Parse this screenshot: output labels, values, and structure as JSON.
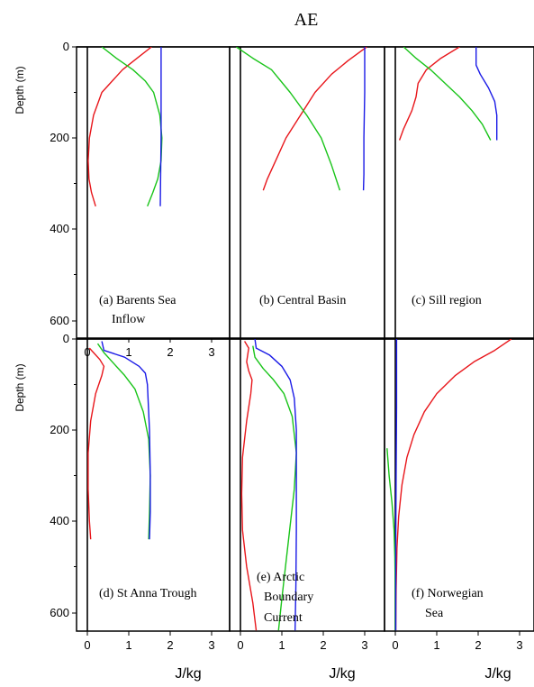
{
  "figure": {
    "title": "AE",
    "depth_label": "Depth (m)",
    "x_label": "J/kg",
    "colors": {
      "red": "#e8161b",
      "green": "#19c419",
      "blue": "#1a1ae6",
      "frame": "#000000"
    }
  },
  "chart_data": [
    {
      "type": "line",
      "panel": "a",
      "label": [
        "(a)   Barents Sea",
        "Inflow"
      ],
      "xlim": [
        -0.15,
        3.35
      ],
      "ylim": [
        0,
        600
      ],
      "xticks": [
        "0",
        "1",
        "2",
        "3"
      ],
      "yticks": [
        "0",
        "200",
        "400",
        "600"
      ],
      "y_unit_axis": "Depth (m)",
      "series": [
        {
          "color": "red",
          "x": [
            1.55,
            1.2,
            0.85,
            0.6,
            0.35,
            0.15,
            0.05,
            0.02,
            0.04,
            0.1,
            0.2
          ],
          "y": [
            0,
            25,
            50,
            75,
            100,
            150,
            200,
            250,
            290,
            320,
            350
          ]
        },
        {
          "color": "green",
          "x": [
            0.35,
            0.7,
            1.1,
            1.4,
            1.6,
            1.75,
            1.8,
            1.78,
            1.7,
            1.58,
            1.45
          ],
          "y": [
            0,
            25,
            50,
            75,
            100,
            150,
            200,
            250,
            290,
            320,
            350
          ]
        },
        {
          "color": "blue",
          "x": [
            1.78,
            1.78,
            1.78,
            1.78,
            1.78,
            1.77,
            1.76
          ],
          "y": [
            0,
            50,
            100,
            150,
            200,
            280,
            350
          ]
        }
      ]
    },
    {
      "type": "line",
      "panel": "b",
      "label": [
        "(b)   Central Basin"
      ],
      "xlim": [
        -0.15,
        3.35
      ],
      "ylim": [
        0,
        600
      ],
      "xticks": [],
      "yticks": [],
      "series": [
        {
          "color": "red",
          "x": [
            3.05,
            2.6,
            2.2,
            1.8,
            1.45,
            1.1,
            0.85,
            0.65,
            0.55
          ],
          "y": [
            0,
            30,
            60,
            100,
            150,
            200,
            250,
            290,
            315
          ]
        },
        {
          "color": "green",
          "x": [
            -0.1,
            0.3,
            0.75,
            1.2,
            1.6,
            1.95,
            2.2,
            2.4
          ],
          "y": [
            0,
            25,
            50,
            100,
            150,
            200,
            260,
            315
          ]
        },
        {
          "color": "blue",
          "x": [
            3.0,
            3.0,
            2.98,
            2.98,
            2.97
          ],
          "y": [
            0,
            100,
            200,
            280,
            315
          ]
        }
      ]
    },
    {
      "type": "line",
      "panel": "c",
      "label": [
        "(c)   Sill region"
      ],
      "xlim": [
        -0.15,
        3.35
      ],
      "ylim": [
        0,
        600
      ],
      "xticks": [],
      "yticks": [],
      "series": [
        {
          "color": "red",
          "x": [
            1.55,
            1.1,
            0.75,
            0.55,
            0.5,
            0.4,
            0.3,
            0.2,
            0.1
          ],
          "y": [
            0,
            25,
            50,
            80,
            110,
            140,
            160,
            180,
            205
          ]
        },
        {
          "color": "green",
          "x": [
            0.2,
            0.5,
            0.85,
            1.2,
            1.55,
            1.85,
            2.1,
            2.3
          ],
          "y": [
            0,
            25,
            50,
            80,
            110,
            140,
            170,
            205
          ]
        },
        {
          "color": "blue",
          "x": [
            1.95,
            1.95,
            2.05,
            2.25,
            2.4,
            2.45,
            2.45
          ],
          "y": [
            0,
            40,
            60,
            90,
            120,
            150,
            205
          ]
        }
      ]
    },
    {
      "type": "line",
      "panel": "d",
      "label": [
        "(d)  St Anna Trough"
      ],
      "xlim": [
        -0.15,
        3.35
      ],
      "ylim": [
        0,
        640
      ],
      "xticks": [
        "0",
        "1",
        "2",
        "3"
      ],
      "yticks": [
        "0",
        "200",
        "400",
        "600"
      ],
      "y_unit_axis": "Depth (m)",
      "series": [
        {
          "color": "red",
          "x": [
            0.05,
            0.15,
            0.3,
            0.4,
            0.35,
            0.2,
            0.08,
            0.02,
            0.02,
            0.05,
            0.08
          ],
          "y": [
            20,
            30,
            45,
            60,
            80,
            120,
            180,
            250,
            330,
            400,
            440
          ]
        },
        {
          "color": "green",
          "x": [
            0.25,
            0.4,
            0.65,
            0.9,
            1.15,
            1.35,
            1.48,
            1.52,
            1.5,
            1.48
          ],
          "y": [
            10,
            30,
            55,
            80,
            110,
            160,
            220,
            300,
            380,
            440
          ]
        },
        {
          "color": "blue",
          "x": [
            0.35,
            0.4,
            0.9,
            1.25,
            1.4,
            1.45,
            1.5,
            1.52,
            1.52,
            1.5
          ],
          "y": [
            5,
            25,
            40,
            60,
            75,
            100,
            200,
            300,
            380,
            440
          ]
        }
      ]
    },
    {
      "type": "line",
      "panel": "e",
      "label": [
        "(e)  Arctic",
        "Boundary",
        "Current"
      ],
      "xlim": [
        -0.15,
        3.35
      ],
      "ylim": [
        0,
        640
      ],
      "xticks": [
        "0",
        "1",
        "2",
        "3"
      ],
      "yticks": [],
      "series": [
        {
          "color": "red",
          "x": [
            0.1,
            0.2,
            0.15,
            0.2,
            0.28,
            0.25,
            0.15,
            0.05,
            0.03,
            0.05,
            0.15,
            0.3,
            0.38
          ],
          "y": [
            5,
            20,
            50,
            70,
            90,
            120,
            180,
            260,
            340,
            420,
            500,
            580,
            640
          ]
        },
        {
          "color": "green",
          "x": [
            0.3,
            0.35,
            0.55,
            0.8,
            1.05,
            1.25,
            1.35,
            1.3,
            1.2,
            1.1,
            1.0,
            0.92
          ],
          "y": [
            15,
            40,
            65,
            90,
            120,
            170,
            250,
            330,
            410,
            490,
            570,
            640
          ]
        },
        {
          "color": "blue",
          "x": [
            0.35,
            0.38,
            0.7,
            1.0,
            1.2,
            1.3,
            1.35,
            1.35,
            1.35,
            1.34,
            1.32
          ],
          "y": [
            0,
            20,
            35,
            60,
            90,
            130,
            200,
            300,
            420,
            540,
            640
          ]
        }
      ]
    },
    {
      "type": "line",
      "panel": "f",
      "label": [
        "(f)  Norwegian",
        "Sea"
      ],
      "xlim": [
        -0.15,
        3.35
      ],
      "ylim": [
        0,
        640
      ],
      "xticks": [
        "0",
        "1",
        "2",
        "3"
      ],
      "yticks": [],
      "series": [
        {
          "color": "red",
          "x": [
            2.8,
            2.4,
            1.9,
            1.45,
            1.0,
            0.7,
            0.45,
            0.28,
            0.16,
            0.08,
            0.04,
            0.02,
            0.01
          ],
          "y": [
            0,
            25,
            50,
            80,
            120,
            160,
            210,
            260,
            320,
            390,
            460,
            550,
            640
          ]
        },
        {
          "color": "green",
          "x": [
            -0.2,
            -0.15,
            -0.08,
            -0.03,
            -0.01,
            0.0,
            0.0
          ],
          "y": [
            240,
            300,
            360,
            420,
            480,
            560,
            640
          ]
        },
        {
          "color": "blue",
          "x": [
            0.03,
            0.03,
            0.02,
            0.01,
            0.01
          ],
          "y": [
            0,
            150,
            300,
            450,
            640
          ]
        }
      ]
    }
  ]
}
